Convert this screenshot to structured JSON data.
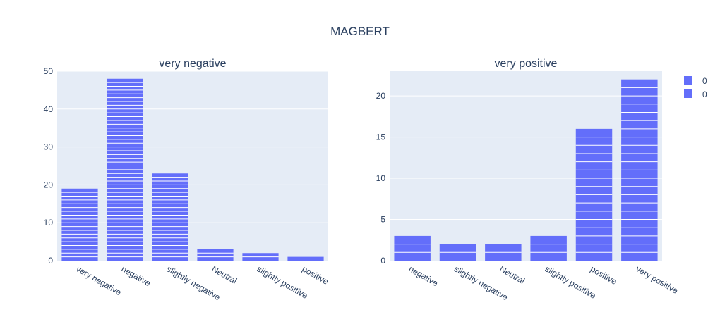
{
  "title": "MAGBERT",
  "colors": {
    "bar": "#636efa",
    "plot_bg": "#e5ecf6",
    "grid": "#ffffff",
    "text": "#2a3f5f"
  },
  "legend": {
    "entries": [
      "0",
      "0"
    ],
    "placement": "top-right"
  },
  "chart_data": [
    {
      "type": "bar",
      "title": "very negative",
      "categories": [
        "very negative",
        "negative",
        "slightly negative",
        "Neutral",
        "slightly positive",
        "positive"
      ],
      "values": [
        19,
        48,
        23,
        3,
        2,
        1
      ],
      "ylim": [
        0,
        50
      ],
      "yticks": [
        0,
        10,
        20,
        30,
        40,
        50
      ],
      "grid": true
    },
    {
      "type": "bar",
      "title": "very positive",
      "categories": [
        "negative",
        "slightly negative",
        "Neutral",
        "slightly positive",
        "positive",
        "very positive"
      ],
      "values": [
        3,
        2,
        2,
        3,
        16,
        22
      ],
      "ylim": [
        0,
        23
      ],
      "yticks": [
        0,
        5,
        10,
        15,
        20
      ],
      "grid": true
    }
  ]
}
